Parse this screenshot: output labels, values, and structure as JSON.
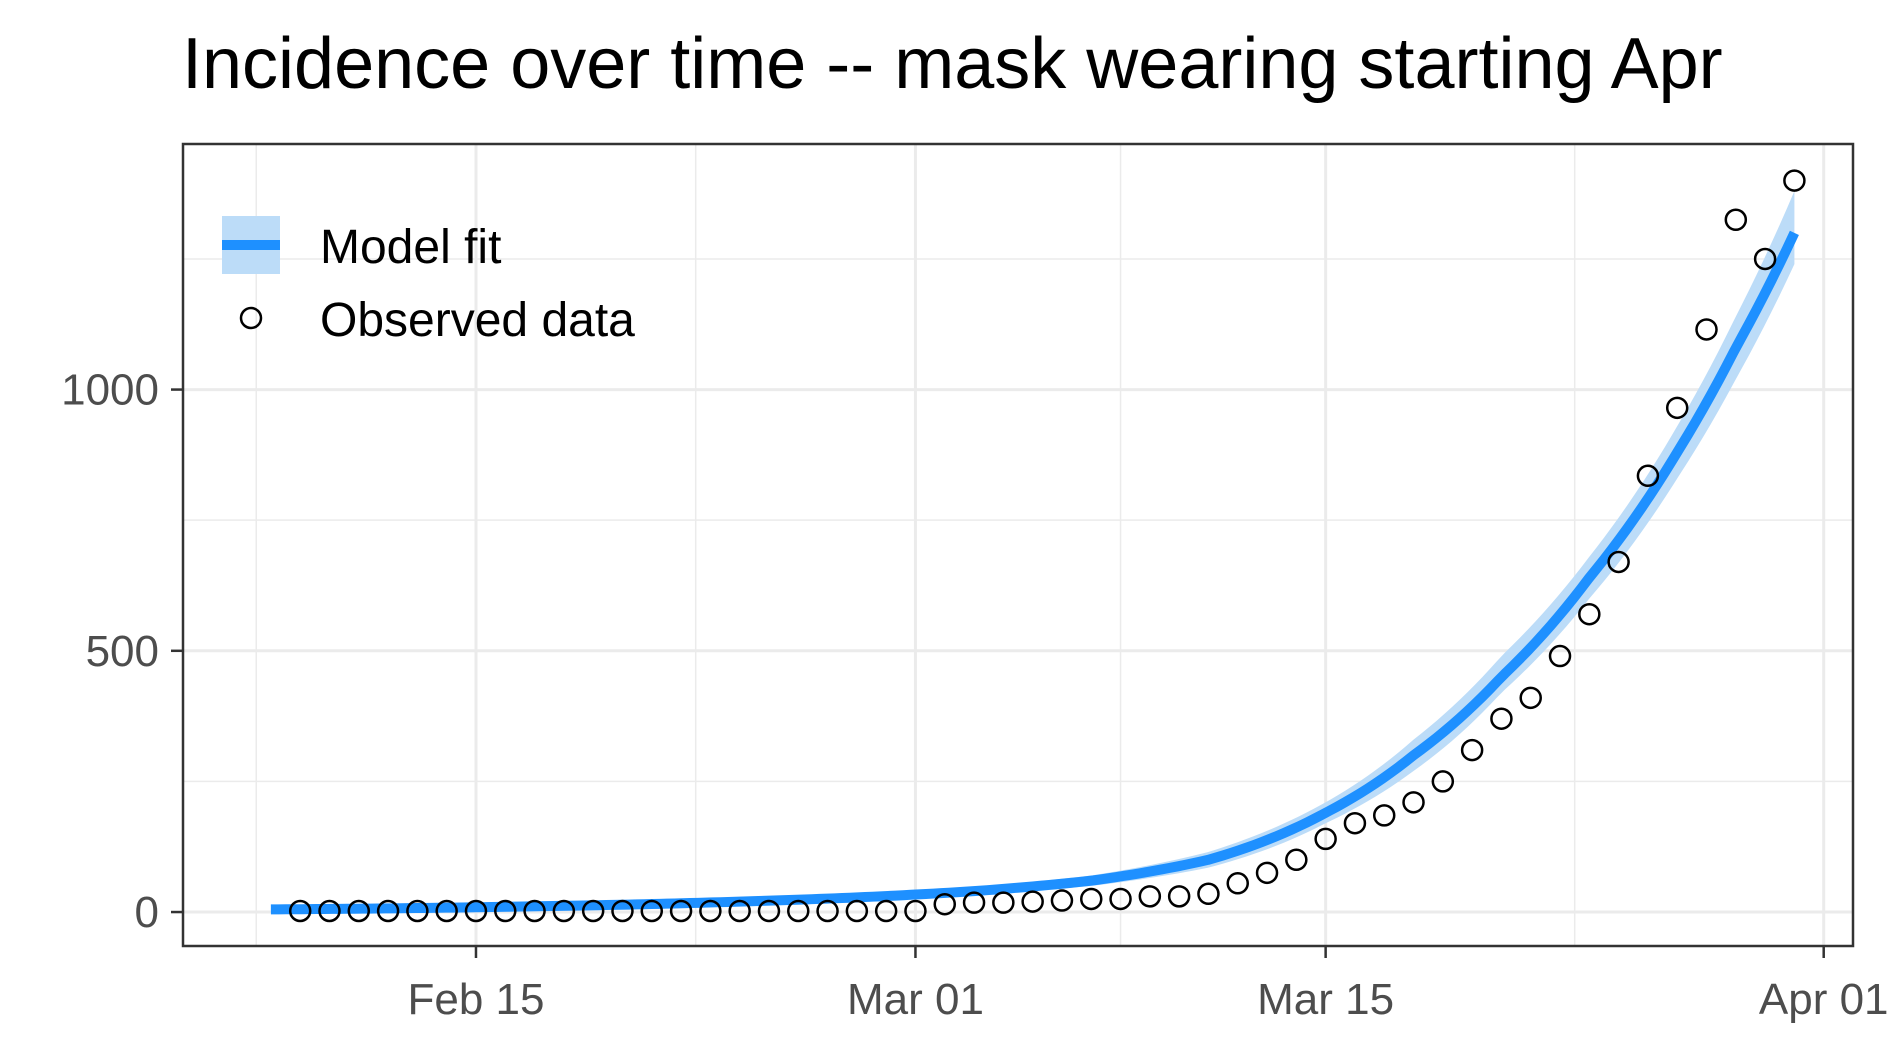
{
  "chart_data": {
    "type": "line",
    "title": "Incidence over time -- mask wearing starting Apr",
    "xlabel": "",
    "ylabel": "",
    "x_tick_labels": [
      "Feb 15",
      "Mar 01",
      "Mar 15",
      "Apr 01"
    ],
    "x_ticks": [
      "2020-02-15",
      "2020-03-01",
      "2020-03-15",
      "2020-04-01"
    ],
    "y_ticks": [
      0,
      500,
      1000
    ],
    "xlim": [
      "2020-02-05",
      "2020-04-02"
    ],
    "ylim": [
      -65,
      1470
    ],
    "grid": true,
    "legend_position": "top-left",
    "colors": {
      "fit_line": "#1e90ff",
      "fit_ribbon": "#bcdcf8",
      "points": "#000000"
    },
    "series": [
      {
        "name": "Model fit",
        "kind": "line-with-ribbon",
        "x": [
          "2020-02-08",
          "2020-02-12",
          "2020-02-16",
          "2020-02-20",
          "2020-02-24",
          "2020-02-28",
          "2020-03-03",
          "2020-03-07",
          "2020-03-11",
          "2020-03-15",
          "2020-03-18",
          "2020-03-21",
          "2020-03-24",
          "2020-03-27",
          "2020-03-29",
          "2020-03-31"
        ],
        "y": [
          5,
          7,
          10,
          14,
          20,
          28,
          40,
          60,
          100,
          190,
          300,
          450,
          640,
          880,
          1080,
          1300
        ],
        "lower": [
          3,
          5,
          7,
          10,
          15,
          22,
          33,
          50,
          85,
          170,
          270,
          420,
          600,
          830,
          1020,
          1240
        ],
        "upper": [
          7,
          9,
          13,
          18,
          25,
          34,
          48,
          70,
          115,
          210,
          330,
          490,
          680,
          930,
          1140,
          1380
        ]
      },
      {
        "name": "Observed data",
        "kind": "points",
        "x": [
          "2020-02-09",
          "2020-02-10",
          "2020-02-11",
          "2020-02-12",
          "2020-02-13",
          "2020-02-14",
          "2020-02-15",
          "2020-02-16",
          "2020-02-17",
          "2020-02-18",
          "2020-02-19",
          "2020-02-20",
          "2020-02-21",
          "2020-02-22",
          "2020-02-23",
          "2020-02-24",
          "2020-02-25",
          "2020-02-26",
          "2020-02-27",
          "2020-02-28",
          "2020-02-29",
          "2020-03-01",
          "2020-03-02",
          "2020-03-03",
          "2020-03-04",
          "2020-03-05",
          "2020-03-06",
          "2020-03-07",
          "2020-03-08",
          "2020-03-09",
          "2020-03-10",
          "2020-03-11",
          "2020-03-12",
          "2020-03-13",
          "2020-03-14",
          "2020-03-15",
          "2020-03-16",
          "2020-03-17",
          "2020-03-18",
          "2020-03-19",
          "2020-03-20",
          "2020-03-21",
          "2020-03-22",
          "2020-03-23",
          "2020-03-24",
          "2020-03-25",
          "2020-03-26",
          "2020-03-27",
          "2020-03-28",
          "2020-03-29",
          "2020-03-30",
          "2020-03-31"
        ],
        "y": [
          2,
          2,
          2,
          2,
          2,
          2,
          2,
          2,
          2,
          2,
          2,
          2,
          2,
          2,
          2,
          2,
          2,
          2,
          2,
          2,
          2,
          2,
          15,
          18,
          18,
          20,
          22,
          25,
          25,
          30,
          30,
          35,
          55,
          75,
          100,
          140,
          170,
          185,
          210,
          250,
          310,
          370,
          410,
          490,
          570,
          670,
          835,
          965,
          1115,
          1325,
          1250,
          1400
        ]
      }
    ]
  }
}
